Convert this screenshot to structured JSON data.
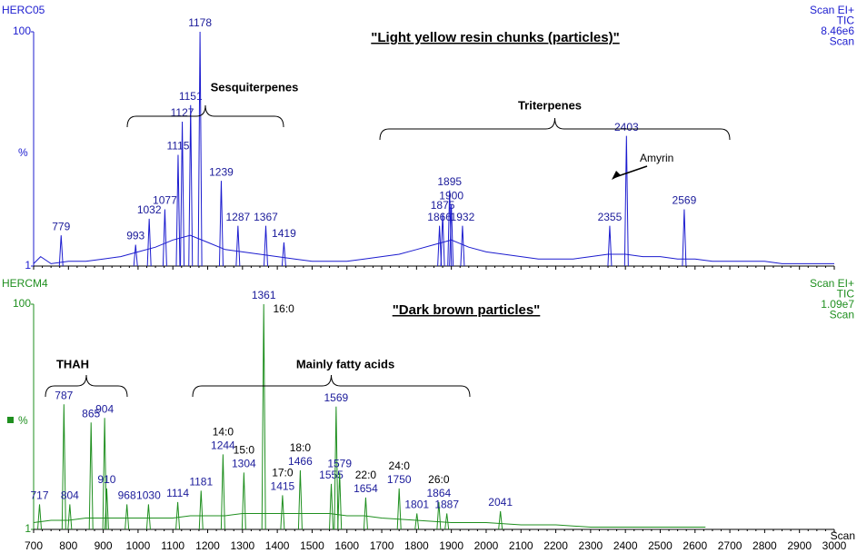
{
  "chart_data": [
    {
      "type": "line",
      "sample": "HERC05",
      "title": "\"Light yellow resin chunks (particles)\"",
      "ylabel": "%",
      "info": [
        "Scan EI+",
        "TIC",
        "8.46e6",
        "Scan"
      ],
      "color": "#1c1ccf",
      "xlim": [
        700,
        3000
      ],
      "ylim": [
        1,
        100
      ],
      "yticks": [
        1,
        100
      ],
      "x": [
        700,
        720,
        750,
        800,
        850,
        900,
        950,
        1000,
        1050,
        1100,
        1150,
        1200,
        1250,
        1300,
        1350,
        1400,
        1450,
        1500,
        1550,
        1600,
        1650,
        1700,
        1750,
        1800,
        1850,
        1900,
        1950,
        2000,
        2050,
        2100,
        2150,
        2200,
        2250,
        2300,
        2350,
        2400,
        2450,
        2500,
        2550,
        2600,
        2650,
        2700,
        2750,
        2800,
        2850,
        2900,
        2950,
        3000
      ],
      "values": [
        2,
        5,
        2,
        3,
        3,
        4,
        5,
        7,
        9,
        12,
        14,
        11,
        8,
        7,
        6,
        5,
        4,
        3,
        3,
        3,
        4,
        5,
        6,
        8,
        10,
        12,
        9,
        7,
        6,
        5,
        4,
        4,
        4,
        5,
        6,
        6,
        5,
        5,
        4,
        4,
        3,
        3,
        3,
        3,
        2,
        2,
        2,
        2
      ],
      "peaks": {
        "x": [
          779,
          993,
          1032,
          1077,
          1115,
          1127,
          1151,
          1178,
          1239,
          1287,
          1367,
          1419,
          1866,
          1875,
          1895,
          1900,
          1932,
          2355,
          2403,
          2569
        ],
        "values": [
          14,
          10,
          21,
          25,
          48,
          62,
          69,
          100,
          37,
          18,
          18,
          11,
          18,
          23,
          33,
          27,
          18,
          18,
          56,
          25
        ]
      },
      "annotations": [
        "Sesquiterpenes",
        "Triterpenes",
        "Amyrin"
      ]
    },
    {
      "type": "line",
      "sample": "HERCM4",
      "title": "\"Dark brown particles\"",
      "ylabel": "%",
      "info": [
        "Scan EI+",
        "TIC",
        "1.09e7",
        "Scan"
      ],
      "color": "#1f8f1f",
      "xlim": [
        700,
        3000
      ],
      "ylim": [
        1,
        100
      ],
      "yticks": [
        1,
        100
      ],
      "xlabel": "Scan",
      "xticks": [
        700,
        800,
        900,
        1000,
        1100,
        1200,
        1300,
        1400,
        1500,
        1600,
        1700,
        1800,
        1900,
        2000,
        2100,
        2200,
        2300,
        2400,
        2500,
        2600,
        2700,
        2800,
        2900,
        3000
      ],
      "x": [
        700,
        750,
        800,
        850,
        900,
        950,
        1000,
        1050,
        1100,
        1150,
        1200,
        1250,
        1300,
        1350,
        1400,
        1450,
        1500,
        1550,
        1600,
        1650,
        1700,
        1800,
        1900,
        2000,
        2100,
        2200,
        2300,
        2400,
        2500,
        2630
      ],
      "values": [
        4,
        5,
        5,
        6,
        6,
        6,
        6,
        6,
        6,
        7,
        7,
        7,
        8,
        8,
        8,
        8,
        8,
        8,
        7,
        7,
        6,
        5,
        4,
        4,
        3,
        3,
        2,
        2,
        2,
        2
      ],
      "peaks": {
        "x": [
          717,
          787,
          804,
          865,
          904,
          910,
          968,
          1030,
          1114,
          1181,
          1244,
          1304,
          1361,
          1415,
          1466,
          1555,
          1569,
          1579,
          1654,
          1750,
          1801,
          1864,
          1887,
          2041
        ],
        "values": [
          12,
          56,
          12,
          48,
          50,
          19,
          12,
          12,
          13,
          18,
          34,
          26,
          100,
          16,
          27,
          21,
          55,
          26,
          15,
          19,
          8,
          13,
          8,
          9
        ]
      },
      "compounds": [
        null,
        null,
        null,
        null,
        null,
        null,
        null,
        null,
        null,
        null,
        "14:0",
        "15:0",
        "16:0",
        "17:0",
        "18:0",
        null,
        null,
        null,
        "22:0",
        "24:0",
        null,
        "26:0",
        null,
        null
      ],
      "annotations": [
        "THAH",
        "Mainly fatty acids"
      ]
    }
  ]
}
